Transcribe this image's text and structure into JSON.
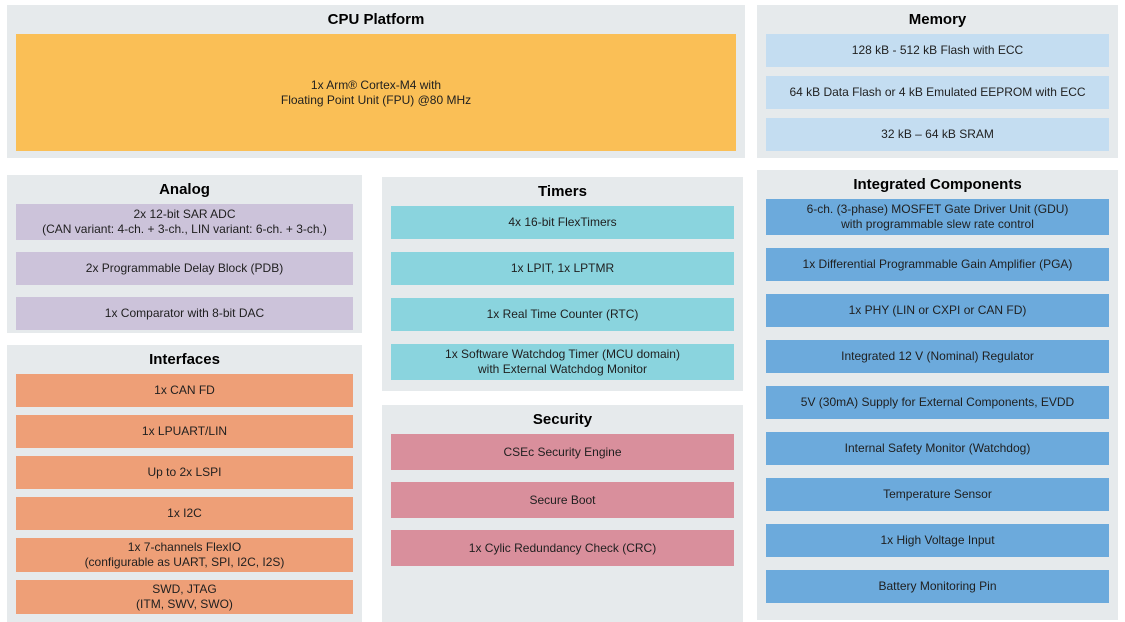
{
  "colors": {
    "panel_bg": "#e6eaec",
    "cpu": "#fabf56",
    "memory": "#c4ddf1",
    "analog": "#ccc3da",
    "timers": "#8ad4de",
    "interfaces": "#ee9f77",
    "security": "#d98f9c",
    "integrated": "#6caadc"
  },
  "sections": {
    "cpu_platform": {
      "title": "CPU Platform",
      "items": [
        "1x Arm® Cortex-M4 with\nFloating Point Unit (FPU) @80 MHz"
      ]
    },
    "memory": {
      "title": "Memory",
      "items": [
        "128 kB - 512 kB Flash with ECC",
        "64 kB Data Flash or 4 kB Emulated EEPROM with ECC",
        "32 kB – 64 kB SRAM"
      ]
    },
    "analog": {
      "title": "Analog",
      "items": [
        "2x 12-bit SAR ADC\n(CAN variant: 4-ch. + 3-ch., LIN variant: 6-ch. + 3-ch.)",
        "2x Programmable Delay Block (PDB)",
        "1x Comparator with 8-bit DAC"
      ]
    },
    "timers": {
      "title": "Timers",
      "items": [
        "4x 16-bit FlexTimers",
        "1x LPIT, 1x LPTMR",
        "1x Real Time Counter (RTC)",
        "1x Software Watchdog Timer (MCU domain)\nwith External Watchdog Monitor"
      ]
    },
    "interfaces": {
      "title": "Interfaces",
      "items": [
        "1x CAN FD",
        "1x LPUART/LIN",
        "Up to 2x LSPI",
        "1x I2C",
        "1x 7-channels FlexIO\n(configurable as UART, SPI, I2C, I2S)",
        "SWD, JTAG\n(ITM, SWV, SWO)"
      ]
    },
    "security": {
      "title": "Security",
      "items": [
        "CSEc Security Engine",
        "Secure Boot",
        "1x Cylic Redundancy Check (CRC)"
      ]
    },
    "integrated_components": {
      "title": "Integrated Components",
      "items": [
        "6-ch. (3-phase) MOSFET Gate Driver Unit (GDU)\nwith programmable slew rate control",
        "1x Differential Programmable Gain Amplifier (PGA)",
        "1x PHY (LIN or CXPI or CAN FD)",
        "Integrated 12 V (Nominal) Regulator",
        "5V (30mA) Supply for External Components, EVDD",
        "Internal Safety Monitor (Watchdog)",
        "Temperature Sensor",
        "1x High Voltage Input",
        "Battery Monitoring Pin"
      ]
    }
  }
}
